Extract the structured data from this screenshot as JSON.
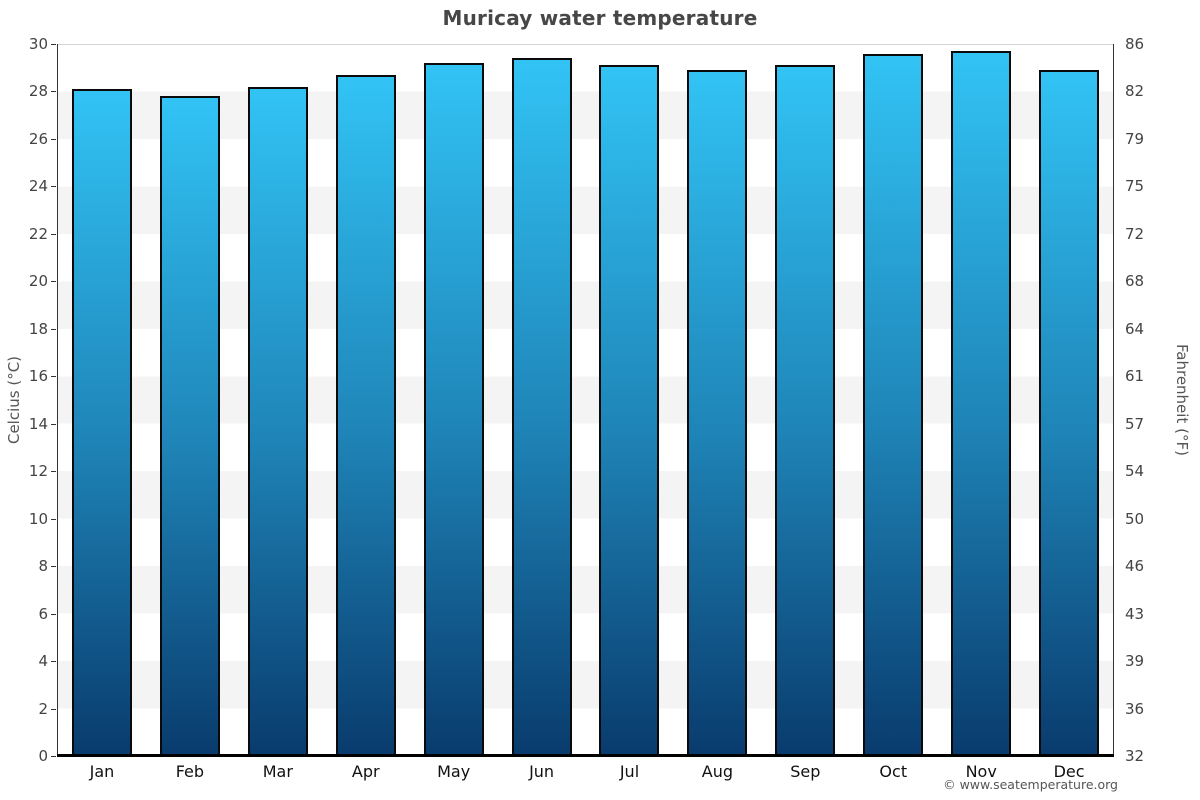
{
  "title": "Muricay water temperature",
  "chart_data": {
    "type": "bar",
    "title": "Muricay water temperature",
    "categories": [
      "Jan",
      "Feb",
      "Mar",
      "Apr",
      "May",
      "Jun",
      "Jul",
      "Aug",
      "Sep",
      "Oct",
      "Nov",
      "Dec"
    ],
    "values": [
      28.1,
      27.8,
      28.2,
      28.7,
      29.2,
      29.4,
      29.1,
      28.9,
      29.1,
      29.6,
      29.7,
      28.9
    ],
    "unit": "°C",
    "xlabel": "",
    "ylabel_left": "Celcius (°C)",
    "ylabel_right": "Fahrenheit (°F)",
    "ylim": [
      0,
      30
    ],
    "grid": "alternating horizontal bands every 2 °C",
    "legend": "none",
    "left_ticks": [
      "30",
      "28",
      "26",
      "24",
      "22",
      "20",
      "18",
      "16",
      "14",
      "12",
      "10",
      "8",
      "6",
      "4",
      "2",
      "0"
    ],
    "right_ticks": [
      "86",
      "82",
      "79",
      "75",
      "72",
      "68",
      "64",
      "61",
      "57",
      "54",
      "50",
      "46",
      "43",
      "39",
      "36",
      "32"
    ],
    "colors": {
      "bar_gradient_top": "#32c3f5",
      "bar_gradient_mid": "#1f85b8",
      "bar_gradient_bottom": "#093b6d",
      "bar_border": "#0a0a0a",
      "band_light": "#ffffff",
      "band_gray": "#f4f4f4",
      "axis_line": "#333333",
      "title_text": "#474747",
      "tick_text": "#444444",
      "month_text": "#111111"
    }
  },
  "footer": {
    "copyright": "© www.seatemperature.org"
  }
}
